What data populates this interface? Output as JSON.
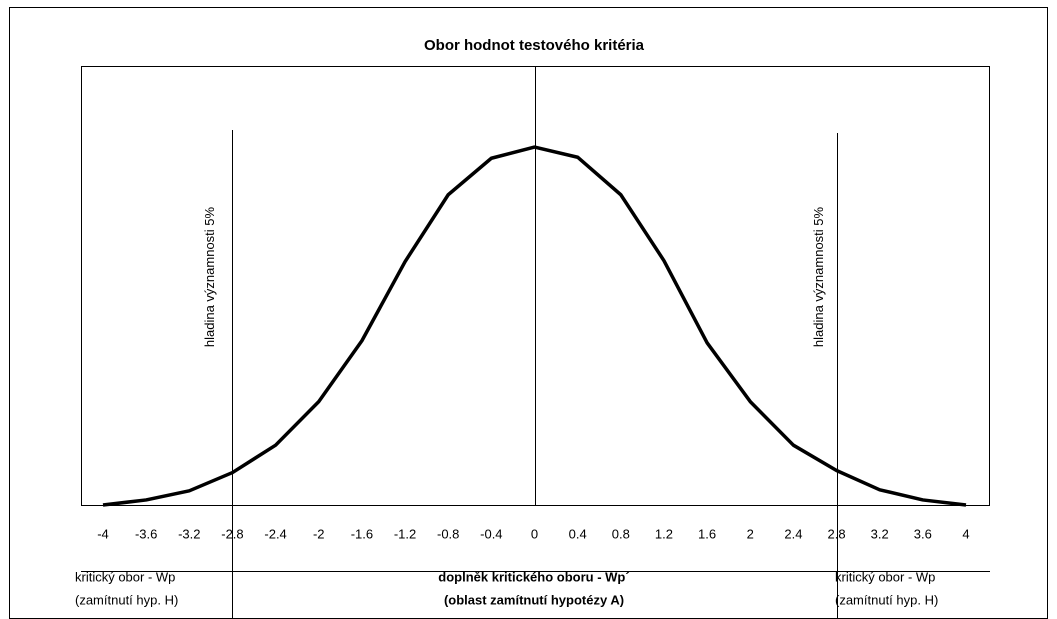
{
  "chart_data": {
    "type": "line",
    "title": "Obor hodnot testového kritéria",
    "x": [
      -4,
      -3.6,
      -3.2,
      -2.8,
      -2.4,
      -2,
      -1.6,
      -1.2,
      -0.8,
      -0.4,
      0,
      0.4,
      0.8,
      1.2,
      1.6,
      2,
      2.4,
      2.8,
      3.2,
      3.6,
      4
    ],
    "values": [
      0,
      5,
      14,
      32,
      59,
      102,
      162,
      240,
      306,
      342,
      353,
      343,
      306,
      241,
      160,
      102,
      59,
      34,
      15,
      5,
      0
    ],
    "color": "#000000",
    "xlim": [
      -4,
      4
    ],
    "ylim": [
      0,
      360
    ],
    "xticks": [
      -4,
      -3.6,
      -3.2,
      -2.8,
      -2.4,
      -2,
      -1.6,
      -1.2,
      -0.8,
      -0.4,
      0,
      0.4,
      0.8,
      1.2,
      1.6,
      2,
      2.4,
      2.8,
      3.2,
      3.6,
      4
    ],
    "reference_lines": [
      -2.8,
      0,
      2.8
    ],
    "annotations": [
      "hladina významnosti 5%",
      "hladina významnosti 5%"
    ],
    "regions": [
      {
        "label": "kritický obor - Wp",
        "sublabel": "(zamítnutí hyp. H)"
      },
      {
        "label": "doplněk kritického oboru - Wp´",
        "sublabel": "(oblast zamítnutí hypotézy A)"
      },
      {
        "label": "kritický obor - Wp",
        "sublabel": "(zamítnutí hyp. H)"
      }
    ]
  }
}
